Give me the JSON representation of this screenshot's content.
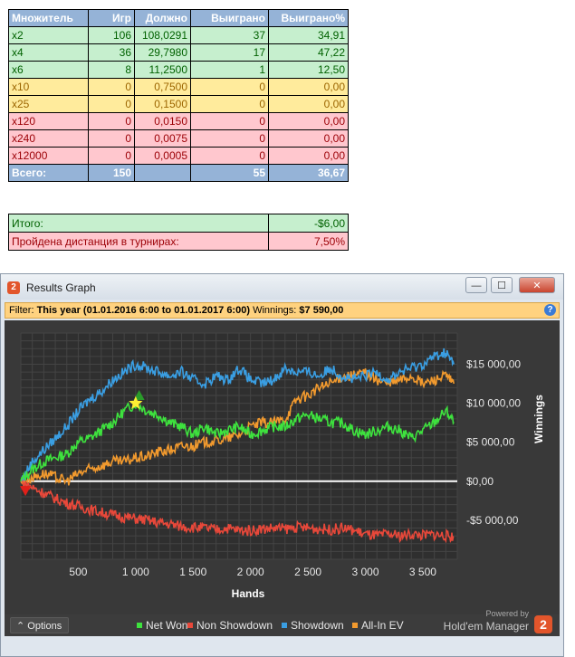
{
  "table": {
    "headers": [
      "Множитель",
      "Игр",
      "Должно",
      "Выиграно",
      "Выиграно%"
    ],
    "rows": [
      {
        "cells": [
          "x2",
          "106",
          "108,0291",
          "37",
          "34,91"
        ]
      },
      {
        "cells": [
          "x4",
          "36",
          "29,7980",
          "17",
          "47,22"
        ]
      },
      {
        "cells": [
          "x6",
          "8",
          "11,2500",
          "1",
          "12,50"
        ]
      },
      {
        "cells": [
          "x10",
          "0",
          "0,7500",
          "0",
          "0,00"
        ]
      },
      {
        "cells": [
          "x25",
          "0",
          "0,1500",
          "0",
          "0,00"
        ]
      },
      {
        "cells": [
          "x120",
          "0",
          "0,0150",
          "0",
          "0,00"
        ]
      },
      {
        "cells": [
          "x240",
          "0",
          "0,0075",
          "0",
          "0,00"
        ]
      },
      {
        "cells": [
          "x12000",
          "0",
          "0,0005",
          "0",
          "0,00"
        ]
      }
    ],
    "total": [
      "Всего:",
      "150",
      "",
      "55",
      "36,67"
    ]
  },
  "summary": {
    "total_label": "Итого:",
    "total_value": "-$6,00",
    "distance_label": "Пройдена дистанция в турнирах:",
    "distance_value": "7,50%"
  },
  "window": {
    "title": "Results Graph",
    "minimize": "—",
    "maximize": "☐",
    "close": "✕"
  },
  "filter": {
    "prefix": "Filter:",
    "period": "This year (01.01.2016 6:00 to 01.01.2017 6:00)",
    "winnings_label": "Winnings:",
    "winnings_value": "$7 590,00",
    "help": "?"
  },
  "footer": {
    "options_label": "Options",
    "powered_by": "Powered by",
    "brand": "Hold'em Manager",
    "logo": "2"
  },
  "colors": {
    "net_won": "#3ee23e",
    "non_showdown": "#e8483a",
    "showdown": "#3a9ee2",
    "all_in_ev": "#f29a2e",
    "background": "#393939"
  },
  "chart_data": {
    "type": "line",
    "xlabel": "Hands",
    "ylabel": "Winnings",
    "xlim": [
      0,
      3800
    ],
    "ylim": [
      -10000,
      19000
    ],
    "x_ticks": [
      500,
      1000,
      1500,
      2000,
      2500,
      3000,
      3500
    ],
    "x_tick_labels": [
      "500",
      "1 000",
      "1 500",
      "2 000",
      "2 500",
      "3 000",
      "3 500"
    ],
    "y_ticks": [
      -5000,
      0,
      5000,
      10000,
      15000
    ],
    "y_tick_labels": [
      "-$5 000,00",
      "$0,00",
      "$5 000,00",
      "$10 000,00",
      "$15 000,00"
    ],
    "grid": true,
    "legend_position": "bottom",
    "series": [
      {
        "name": "Net Won",
        "x": [
          0,
          100,
          200,
          300,
          400,
          500,
          600,
          700,
          800,
          900,
          1000,
          1100,
          1200,
          1300,
          1400,
          1500,
          1600,
          1700,
          1800,
          1900,
          2000,
          2100,
          2200,
          2300,
          2400,
          2500,
          2600,
          2700,
          2800,
          2900,
          3000,
          3100,
          3200,
          3300,
          3400,
          3500,
          3600,
          3700,
          3770
        ],
        "values": [
          0,
          1500,
          2500,
          3000,
          3500,
          5000,
          5500,
          6500,
          7500,
          9000,
          10000,
          9000,
          8500,
          7500,
          7000,
          6000,
          7000,
          6000,
          6500,
          7000,
          6000,
          6500,
          7000,
          7000,
          8000,
          8500,
          8000,
          7500,
          7500,
          6500,
          6000,
          6500,
          7000,
          6500,
          5500,
          6500,
          7500,
          9000,
          7590
        ]
      },
      {
        "name": "Non Showdown",
        "x": [
          0,
          100,
          200,
          300,
          400,
          500,
          600,
          700,
          800,
          900,
          1000,
          1100,
          1200,
          1300,
          1400,
          1500,
          1600,
          1700,
          1800,
          1900,
          2000,
          2100,
          2200,
          2300,
          2400,
          2500,
          2600,
          2700,
          2800,
          2900,
          3000,
          3100,
          3200,
          3300,
          3400,
          3500,
          3600,
          3700,
          3770
        ],
        "values": [
          0,
          -800,
          -1500,
          -2200,
          -2800,
          -3200,
          -3600,
          -4000,
          -4300,
          -4600,
          -4800,
          -5000,
          -5300,
          -5500,
          -5800,
          -5900,
          -6000,
          -6200,
          -6000,
          -6300,
          -6300,
          -6100,
          -6000,
          -6100,
          -5900,
          -6000,
          -6100,
          -6200,
          -6000,
          -6300,
          -6800,
          -7000,
          -6800,
          -7000,
          -6800,
          -6900,
          -6800,
          -7000,
          -7100
        ]
      },
      {
        "name": "Showdown",
        "x": [
          0,
          100,
          200,
          300,
          400,
          500,
          600,
          700,
          800,
          900,
          1000,
          1100,
          1200,
          1300,
          1400,
          1500,
          1600,
          1700,
          1800,
          1900,
          2000,
          2100,
          2200,
          2300,
          2400,
          2500,
          2600,
          2700,
          2800,
          2900,
          3000,
          3100,
          3200,
          3300,
          3400,
          3500,
          3600,
          3700,
          3770
        ],
        "values": [
          0,
          2500,
          4000,
          5500,
          7000,
          9000,
          10500,
          11500,
          13000,
          14000,
          15000,
          14500,
          14000,
          13500,
          14000,
          13000,
          12500,
          13500,
          13000,
          14500,
          13000,
          12500,
          13000,
          14500,
          14000,
          14000,
          13500,
          14500,
          13500,
          13000,
          13500,
          14000,
          13000,
          14000,
          14500,
          15000,
          16000,
          16500,
          15000
        ]
      },
      {
        "name": "All-In EV",
        "x": [
          0,
          100,
          200,
          300,
          400,
          500,
          600,
          700,
          800,
          900,
          1000,
          1100,
          1200,
          1300,
          1400,
          1500,
          1600,
          1700,
          1800,
          1900,
          2000,
          2100,
          2200,
          2300,
          2400,
          2500,
          2600,
          2700,
          2800,
          2900,
          3000,
          3100,
          3200,
          3300,
          3400,
          3500,
          3600,
          3700,
          3770
        ],
        "values": [
          0,
          500,
          1000,
          500,
          0,
          1000,
          1500,
          2000,
          2500,
          2500,
          3000,
          3200,
          3800,
          4000,
          4500,
          4500,
          5000,
          5200,
          5500,
          6000,
          7000,
          7500,
          7500,
          8000,
          10500,
          11000,
          12000,
          12500,
          13500,
          13500,
          14000,
          13000,
          12500,
          13000,
          13500,
          12500,
          13000,
          13500,
          12500
        ]
      }
    ],
    "markers": [
      {
        "series": "Net Won",
        "x": 1030,
        "y": 11000,
        "shape": "triangle-up",
        "color": "#2a9c2a"
      },
      {
        "series": "Net Won",
        "x": 1000,
        "y": 10000,
        "shape": "star",
        "color": "#ffee33"
      },
      {
        "series": "Non Showdown",
        "x": 40,
        "y": -1200,
        "shape": "triangle-down",
        "color": "#e0201a"
      }
    ]
  }
}
